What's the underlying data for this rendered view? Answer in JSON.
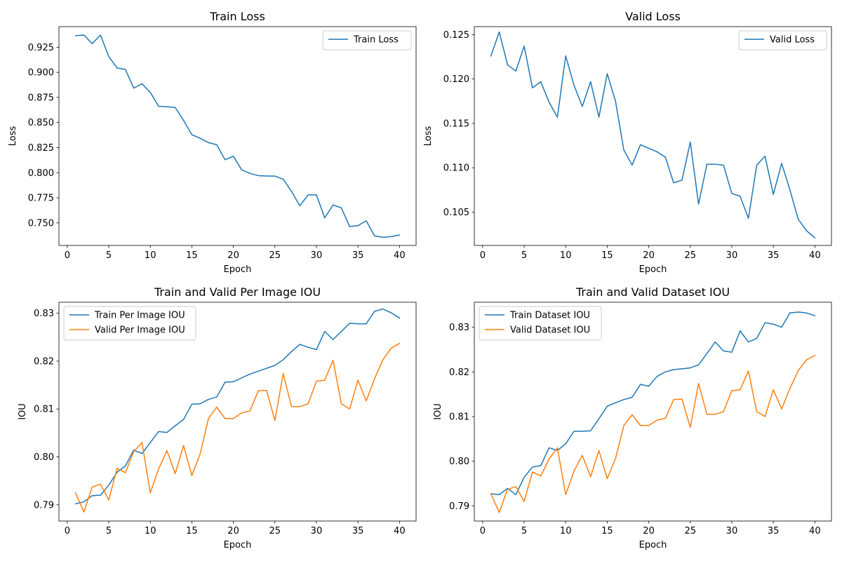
{
  "chart_data": [
    {
      "type": "line",
      "title": "Train Loss",
      "xlabel": "Epoch",
      "ylabel": "Loss",
      "xlim": [
        -1,
        42
      ],
      "ylim": [
        0.72755,
        0.9455
      ],
      "xticks": [
        0,
        5,
        10,
        15,
        20,
        25,
        30,
        35,
        40
      ],
      "yticks": [
        0.75,
        0.775,
        0.8,
        0.825,
        0.85,
        0.875,
        0.9,
        0.925
      ],
      "ytick_decimals": 3,
      "grid": false,
      "legend": "upper right",
      "x": [
        1,
        2,
        3,
        4,
        5,
        6,
        7,
        8,
        9,
        10,
        11,
        12,
        13,
        14,
        15,
        16,
        17,
        18,
        19,
        20,
        21,
        22,
        23,
        24,
        25,
        26,
        27,
        28,
        29,
        30,
        31,
        32,
        33,
        34,
        35,
        36,
        37,
        38,
        39,
        40
      ],
      "series": [
        {
          "name": "Train Loss",
          "color": "#1f77b4",
          "values": [
            0.9365,
            0.9371,
            0.9286,
            0.9371,
            0.9157,
            0.9043,
            0.9029,
            0.8843,
            0.8886,
            0.88,
            0.8662,
            0.8657,
            0.865,
            0.8521,
            0.8379,
            0.8343,
            0.83,
            0.8279,
            0.8129,
            0.8164,
            0.8029,
            0.7993,
            0.7971,
            0.7967,
            0.7966,
            0.7936,
            0.7814,
            0.7671,
            0.7779,
            0.7779,
            0.755,
            0.7679,
            0.765,
            0.7464,
            0.7473,
            0.7521,
            0.7371,
            0.7357,
            0.7364,
            0.7379
          ]
        }
      ]
    },
    {
      "type": "line",
      "title": "Valid Loss",
      "xlabel": "Epoch",
      "ylabel": "Loss",
      "xlim": [
        -1,
        42
      ],
      "ylim": [
        0.10125,
        0.1259
      ],
      "xticks": [
        0,
        5,
        10,
        15,
        20,
        25,
        30,
        35,
        40
      ],
      "yticks": [
        0.105,
        0.11,
        0.115,
        0.12,
        0.125
      ],
      "ytick_decimals": 3,
      "grid": false,
      "legend": "upper right",
      "x": [
        1,
        2,
        3,
        4,
        5,
        6,
        7,
        8,
        9,
        10,
        11,
        12,
        13,
        14,
        15,
        16,
        17,
        18,
        19,
        20,
        21,
        22,
        23,
        24,
        25,
        26,
        27,
        28,
        29,
        30,
        31,
        32,
        33,
        34,
        35,
        36,
        37,
        38,
        39,
        40
      ],
      "series": [
        {
          "name": "Valid Loss",
          "color": "#1f77b4",
          "values": [
            0.1226,
            0.1253,
            0.1216,
            0.1209,
            0.1237,
            0.119,
            0.1197,
            0.1174,
            0.1157,
            0.1226,
            0.1193,
            0.1169,
            0.1197,
            0.1157,
            0.1206,
            0.1175,
            0.112,
            0.1103,
            0.1126,
            0.1122,
            0.1118,
            0.1112,
            0.1083,
            0.1086,
            0.1129,
            0.1059,
            0.1104,
            0.1104,
            0.1103,
            0.1071,
            0.1068,
            0.1043,
            0.1103,
            0.1113,
            0.107,
            0.1105,
            0.1075,
            0.1042,
            0.1029,
            0.1021
          ]
        }
      ]
    },
    {
      "type": "line",
      "title": "Train and Valid Per Image IOU",
      "xlabel": "Epoch",
      "ylabel": "IOU",
      "xlim": [
        -1,
        42
      ],
      "ylim": [
        0.7866,
        0.8323
      ],
      "xticks": [
        0,
        5,
        10,
        15,
        20,
        25,
        30,
        35,
        40
      ],
      "yticks": [
        0.79,
        0.8,
        0.81,
        0.82,
        0.83
      ],
      "ytick_decimals": 2,
      "grid": false,
      "legend": "upper left",
      "x": [
        1,
        2,
        3,
        4,
        5,
        6,
        7,
        8,
        9,
        10,
        11,
        12,
        13,
        14,
        15,
        16,
        17,
        18,
        19,
        20,
        21,
        22,
        23,
        24,
        25,
        26,
        27,
        28,
        29,
        30,
        31,
        32,
        33,
        34,
        35,
        36,
        37,
        38,
        39,
        40
      ],
      "series": [
        {
          "name": "Train Per Image IOU",
          "color": "#1f77b4",
          "values": [
            0.7902,
            0.7906,
            0.7919,
            0.792,
            0.7941,
            0.7968,
            0.7981,
            0.8014,
            0.8007,
            0.803,
            0.8053,
            0.8051,
            0.8065,
            0.8078,
            0.811,
            0.8111,
            0.812,
            0.8125,
            0.8156,
            0.8157,
            0.8165,
            0.8173,
            0.8179,
            0.8185,
            0.8191,
            0.8203,
            0.822,
            0.8235,
            0.8229,
            0.8224,
            0.8262,
            0.8245,
            0.8262,
            0.8279,
            0.8278,
            0.8278,
            0.8304,
            0.8309,
            0.8301,
            0.829
          ]
        },
        {
          "name": "Valid Per Image IOU",
          "color": "#ff7f0e",
          "values": [
            0.7925,
            0.7885,
            0.7937,
            0.7943,
            0.791,
            0.7976,
            0.7967,
            0.8011,
            0.803,
            0.7925,
            0.7975,
            0.8013,
            0.7965,
            0.8024,
            0.7961,
            0.8006,
            0.808,
            0.8104,
            0.808,
            0.808,
            0.8092,
            0.8096,
            0.8138,
            0.8139,
            0.8076,
            0.8174,
            0.8105,
            0.8105,
            0.8111,
            0.8158,
            0.816,
            0.8202,
            0.8111,
            0.81,
            0.816,
            0.8117,
            0.8163,
            0.8203,
            0.8227,
            0.8237
          ]
        }
      ]
    },
    {
      "type": "line",
      "title": "Train and Valid Dataset IOU",
      "xlabel": "Epoch",
      "ylabel": "IOU",
      "xlim": [
        -1,
        42
      ],
      "ylim": [
        0.7866,
        0.8356
      ],
      "xticks": [
        0,
        5,
        10,
        15,
        20,
        25,
        30,
        35,
        40
      ],
      "yticks": [
        0.79,
        0.8,
        0.81,
        0.82,
        0.83
      ],
      "ytick_decimals": 2,
      "grid": false,
      "legend": "upper left",
      "x": [
        1,
        2,
        3,
        4,
        5,
        6,
        7,
        8,
        9,
        10,
        11,
        12,
        13,
        14,
        15,
        16,
        17,
        18,
        19,
        20,
        21,
        22,
        23,
        24,
        25,
        26,
        27,
        28,
        29,
        30,
        31,
        32,
        33,
        34,
        35,
        36,
        37,
        38,
        39,
        40
      ],
      "series": [
        {
          "name": "Train Dataset IOU",
          "color": "#1f77b4",
          "values": [
            0.7927,
            0.7925,
            0.7939,
            0.7925,
            0.7964,
            0.7987,
            0.799,
            0.803,
            0.8024,
            0.8039,
            0.8067,
            0.8067,
            0.8068,
            0.8095,
            0.8123,
            0.8131,
            0.8138,
            0.8143,
            0.8172,
            0.8168,
            0.819,
            0.82,
            0.8205,
            0.8207,
            0.8209,
            0.8216,
            0.8241,
            0.8267,
            0.8247,
            0.8244,
            0.8292,
            0.8267,
            0.8275,
            0.831,
            0.8307,
            0.83,
            0.8332,
            0.8334,
            0.8332,
            0.8326
          ]
        },
        {
          "name": "Valid Dataset IOU",
          "color": "#ff7f0e",
          "values": [
            0.7927,
            0.7885,
            0.7937,
            0.7943,
            0.791,
            0.7976,
            0.7967,
            0.8005,
            0.803,
            0.7925,
            0.7978,
            0.8013,
            0.7965,
            0.8024,
            0.7961,
            0.8006,
            0.808,
            0.8104,
            0.808,
            0.808,
            0.8092,
            0.8096,
            0.8138,
            0.8139,
            0.8076,
            0.8174,
            0.8105,
            0.8105,
            0.8111,
            0.8158,
            0.816,
            0.8202,
            0.8111,
            0.81,
            0.816,
            0.8117,
            0.8163,
            0.8203,
            0.8227,
            0.8237
          ]
        }
      ]
    }
  ]
}
